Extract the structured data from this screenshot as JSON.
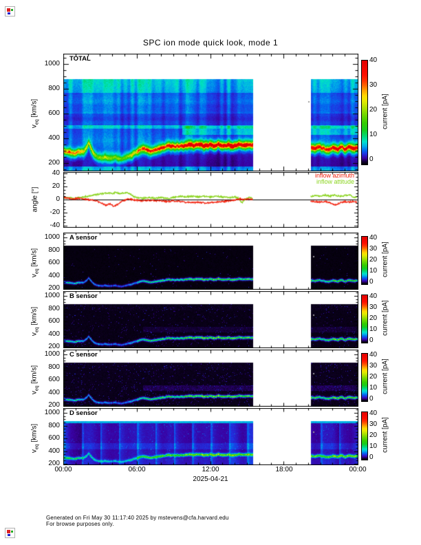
{
  "title": "SPC ion mode quick look, mode 1",
  "icons": {
    "top_left": "broken-image-icon",
    "bottom_left": "broken-image-icon"
  },
  "axes": {
    "velocity_label": {
      "sym": "v",
      "sub": "eq",
      "unit": "[km/s]"
    },
    "velocity_ticks": [
      "1000",
      "800",
      "600",
      "400",
      "200"
    ],
    "angle_label": "angle [°]",
    "angle_ticks": [
      "40",
      "20",
      "0",
      "-20",
      "-40"
    ],
    "time_ticks": [
      "00:00",
      "06:00",
      "12:00",
      "18:00",
      "00:00"
    ],
    "date_label": "2025-04-21"
  },
  "colorbar": {
    "title": "current [pA]",
    "ticks": [
      "40",
      "30",
      "20",
      "10",
      "0"
    ],
    "range_pa": [
      0,
      40
    ],
    "palette": [
      [
        0,
        "#000000"
      ],
      [
        0.03,
        "#16003c"
      ],
      [
        0.06,
        "#3a00a0"
      ],
      [
        0.1,
        "#2130e0"
      ],
      [
        0.14,
        "#0070f0"
      ],
      [
        0.18,
        "#00b4e6"
      ],
      [
        0.22,
        "#00e2c8"
      ],
      [
        0.27,
        "#00d87a"
      ],
      [
        0.33,
        "#14cc1e"
      ],
      [
        0.4,
        "#34cc00"
      ],
      [
        0.48,
        "#72d800"
      ],
      [
        0.55,
        "#b4e200"
      ],
      [
        0.61,
        "#e6ea00"
      ],
      [
        0.66,
        "#ffd800"
      ],
      [
        0.71,
        "#ffa400"
      ],
      [
        0.76,
        "#ff6400"
      ],
      [
        0.81,
        "#ff3000"
      ],
      [
        0.86,
        "#ff0e00"
      ],
      [
        1,
        "#e20000"
      ]
    ]
  },
  "panels": [
    {
      "id": "total",
      "label": "TOTAL",
      "type": "spectrogram"
    },
    {
      "id": "angle",
      "label": "",
      "type": "line",
      "legend": [
        {
          "label": "inflow azimuth",
          "color": "#f2220e"
        },
        {
          "label": "inflow attitude",
          "color": "#8ad41e"
        }
      ]
    },
    {
      "id": "a",
      "label": "A sensor",
      "type": "spectrogram"
    },
    {
      "id": "b",
      "label": "B sensor",
      "type": "spectrogram"
    },
    {
      "id": "c",
      "label": "C sensor",
      "type": "spectrogram"
    },
    {
      "id": "d",
      "label": "D sensor",
      "type": "spectrogram"
    }
  ],
  "footer": {
    "line1": "Generated on Fri May 30 11:17:40 2025 by mstevens@cfa.harvard.edu",
    "line2": "For browse purposes only."
  },
  "chart_data": [
    {
      "type": "heatmap",
      "panel": "TOTAL",
      "x_hours": [
        0,
        24
      ],
      "y_range_kms": [
        140,
        1080
      ],
      "data_top_kms": 880,
      "value_range_pa": [
        0,
        40
      ],
      "coverage_hours": [
        [
          0,
          15.5
        ],
        [
          20.2,
          24
        ]
      ],
      "band_speed_kms": [
        [
          0,
          302
        ],
        [
          0.4,
          296
        ],
        [
          0.9,
          288
        ],
        [
          1.3,
          296
        ],
        [
          1.6,
          288
        ],
        [
          1.9,
          326
        ],
        [
          2.05,
          372
        ],
        [
          2.2,
          330
        ],
        [
          2.45,
          281
        ],
        [
          2.7,
          258
        ],
        [
          3.1,
          242
        ],
        [
          3.5,
          250
        ],
        [
          3.9,
          237
        ],
        [
          4.3,
          248
        ],
        [
          4.7,
          238
        ],
        [
          5.1,
          252
        ],
        [
          5.5,
          266
        ],
        [
          5.9,
          288
        ],
        [
          6.2,
          308
        ],
        [
          6.5,
          318
        ],
        [
          6.8,
          312
        ],
        [
          7.1,
          300
        ],
        [
          7.45,
          311
        ],
        [
          7.8,
          318
        ],
        [
          8.1,
          327
        ],
        [
          8.45,
          340
        ],
        [
          8.8,
          338
        ],
        [
          9.1,
          330
        ],
        [
          9.5,
          342
        ],
        [
          9.9,
          338
        ],
        [
          10.2,
          352
        ],
        [
          10.6,
          345
        ],
        [
          11,
          352
        ],
        [
          11.4,
          344
        ],
        [
          11.8,
          350
        ],
        [
          12.2,
          342
        ],
        [
          12.6,
          352
        ],
        [
          13,
          340
        ],
        [
          13.4,
          348
        ],
        [
          13.8,
          342
        ],
        [
          14.2,
          352
        ],
        [
          14.6,
          346
        ],
        [
          15,
          350
        ],
        [
          15.5,
          344
        ],
        [
          20.2,
          330
        ],
        [
          20.5,
          322
        ],
        [
          20.9,
          336
        ],
        [
          21.3,
          318
        ],
        [
          21.7,
          306
        ],
        [
          22,
          330
        ],
        [
          22.3,
          312
        ],
        [
          22.7,
          330
        ],
        [
          23,
          318
        ],
        [
          23.3,
          334
        ],
        [
          23.6,
          320
        ],
        [
          24,
          326
        ]
      ],
      "band_peak_pa": [
        [
          0,
          24
        ],
        [
          0.7,
          21
        ],
        [
          1.4,
          19
        ],
        [
          2,
          17
        ],
        [
          2.5,
          13
        ],
        [
          3,
          11.5
        ],
        [
          3.6,
          12
        ],
        [
          4.2,
          11
        ],
        [
          4.8,
          12.5
        ],
        [
          5.4,
          14
        ],
        [
          5.9,
          18
        ],
        [
          6.3,
          23
        ],
        [
          6.8,
          26
        ],
        [
          7.3,
          25
        ],
        [
          7.8,
          27
        ],
        [
          8.3,
          29
        ],
        [
          8.8,
          31
        ],
        [
          9.3,
          29
        ],
        [
          9.8,
          33
        ],
        [
          10.3,
          36
        ],
        [
          10.8,
          33
        ],
        [
          11.3,
          35
        ],
        [
          11.8,
          36
        ],
        [
          12.3,
          34
        ],
        [
          12.8,
          36
        ],
        [
          13.3,
          33
        ],
        [
          13.8,
          36
        ],
        [
          14.3,
          34
        ],
        [
          14.8,
          36
        ],
        [
          15.5,
          35
        ],
        [
          20.2,
          30
        ],
        [
          20.7,
          33
        ],
        [
          21.2,
          31
        ],
        [
          21.7,
          29
        ],
        [
          22.2,
          33
        ],
        [
          22.7,
          31
        ],
        [
          23.2,
          34
        ],
        [
          23.6,
          32
        ],
        [
          24,
          33
        ]
      ],
      "features": {
        "background_pa": 5.2,
        "bright_line_kms": [
          480,
          508
        ],
        "dark_band_kms": [
          508,
          600
        ],
        "alpha_stripe": {
          "from_hour": 9.7,
          "kms": [
            428,
            505
          ]
        },
        "bottom_strip_kms": [
          140,
          175
        ]
      }
    },
    {
      "type": "line",
      "panel": "angle",
      "ylabel": "angle [°]",
      "y_range_deg": [
        -43,
        43
      ],
      "zero_line": true,
      "series": [
        {
          "name": "inflow azimuth",
          "color": "#f2220e",
          "points_hours_deg": [
            [
              0,
              3
            ],
            [
              0.4,
              2
            ],
            [
              0.8,
              1
            ],
            [
              1.2,
              2
            ],
            [
              1.6,
              1
            ],
            [
              2,
              0
            ],
            [
              2.4,
              -1
            ],
            [
              2.8,
              -3
            ],
            [
              3.2,
              -6
            ],
            [
              3.5,
              -9
            ],
            [
              3.8,
              -6
            ],
            [
              4.1,
              -10
            ],
            [
              4.4,
              -8
            ],
            [
              4.7,
              -4
            ],
            [
              5,
              -1
            ],
            [
              5.3,
              1
            ],
            [
              5.6,
              0
            ],
            [
              6,
              -1
            ],
            [
              6.5,
              -2
            ],
            [
              7,
              -1
            ],
            [
              7.5,
              -2
            ],
            [
              8,
              -2
            ],
            [
              8.5,
              -3
            ],
            [
              9,
              -2
            ],
            [
              9.5,
              -3
            ],
            [
              10,
              -4
            ],
            [
              10.5,
              -5
            ],
            [
              11,
              -4
            ],
            [
              11.5,
              -5
            ],
            [
              12,
              -5
            ],
            [
              12.5,
              -4
            ],
            [
              13,
              -3
            ],
            [
              13.5,
              -2
            ],
            [
              14,
              -1
            ],
            [
              14.4,
              1
            ],
            [
              14.8,
              0
            ],
            [
              15.2,
              1
            ],
            [
              15.5,
              0
            ],
            [
              20.2,
              -2
            ],
            [
              20.6,
              -3
            ],
            [
              21,
              -4
            ],
            [
              21.4,
              -3
            ],
            [
              21.8,
              -5
            ],
            [
              22.2,
              -8
            ],
            [
              22.5,
              -6
            ],
            [
              22.9,
              -3
            ],
            [
              23.3,
              -4
            ],
            [
              23.7,
              -3
            ],
            [
              24,
              -4
            ]
          ]
        },
        {
          "name": "inflow attitude",
          "color": "#8ad41e",
          "points_hours_deg": [
            [
              0,
              2
            ],
            [
              0.4,
              3
            ],
            [
              0.8,
              2
            ],
            [
              1.2,
              3
            ],
            [
              1.6,
              4
            ],
            [
              2,
              5
            ],
            [
              2.4,
              7
            ],
            [
              2.8,
              8
            ],
            [
              3.2,
              9
            ],
            [
              3.6,
              10
            ],
            [
              4,
              9
            ],
            [
              4.3,
              11
            ],
            [
              4.6,
              9
            ],
            [
              4.9,
              10
            ],
            [
              5.2,
              11
            ],
            [
              5.5,
              8
            ],
            [
              5.8,
              4
            ],
            [
              6.1,
              3
            ],
            [
              6.5,
              2
            ],
            [
              7,
              3
            ],
            [
              7.5,
              2
            ],
            [
              8,
              3
            ],
            [
              8.5,
              2
            ],
            [
              9,
              3
            ],
            [
              9.5,
              5
            ],
            [
              10,
              4
            ],
            [
              10.5,
              5
            ],
            [
              11,
              4
            ],
            [
              11.5,
              5
            ],
            [
              12,
              4
            ],
            [
              12.5,
              5
            ],
            [
              13,
              4
            ],
            [
              13.5,
              3
            ],
            [
              14,
              4
            ],
            [
              14.3,
              2
            ],
            [
              14.6,
              -5
            ],
            [
              14.9,
              1
            ],
            [
              15.2,
              3
            ],
            [
              15.5,
              2
            ],
            [
              20.2,
              4
            ],
            [
              20.6,
              6
            ],
            [
              21,
              5
            ],
            [
              21.4,
              7
            ],
            [
              21.8,
              5
            ],
            [
              22.2,
              7
            ],
            [
              22.6,
              5
            ],
            [
              23,
              6
            ],
            [
              23.4,
              7
            ],
            [
              23.7,
              4
            ],
            [
              24,
              3
            ]
          ]
        }
      ]
    },
    {
      "type": "heatmap",
      "panel": "A sensor",
      "band_follows": "TOTAL",
      "style": {
        "background_pa": 0.3,
        "speckle": 0.006,
        "band_scale": 0.4,
        "mid_band_pa": 0,
        "top_fuzz_pa": 0,
        "stripes": false,
        "top_edge_pa": 0
      }
    },
    {
      "type": "heatmap",
      "panel": "B sensor",
      "band_follows": "TOTAL",
      "style": {
        "background_pa": 0.45,
        "speckle": 0.02,
        "band_scale": 0.44,
        "mid_band_pa": 0.6,
        "top_fuzz_pa": 0.8,
        "stripes": false,
        "top_edge_pa": 0
      }
    },
    {
      "type": "heatmap",
      "panel": "C sensor",
      "band_follows": "TOTAL",
      "style": {
        "background_pa": 0.55,
        "speckle": 0.03,
        "band_scale": 0.44,
        "mid_band_pa": 0.9,
        "top_fuzz_pa": 0.5,
        "stripes": false,
        "top_edge_pa": 0
      }
    },
    {
      "type": "heatmap",
      "panel": "D sensor",
      "band_follows": "TOTAL",
      "style": {
        "background_pa": 2.6,
        "speckle": 0.01,
        "band_scale": 0.46,
        "mid_band_pa": 1.3,
        "top_fuzz_pa": 0,
        "stripes": true,
        "top_edge_pa": 7.2
      }
    }
  ]
}
